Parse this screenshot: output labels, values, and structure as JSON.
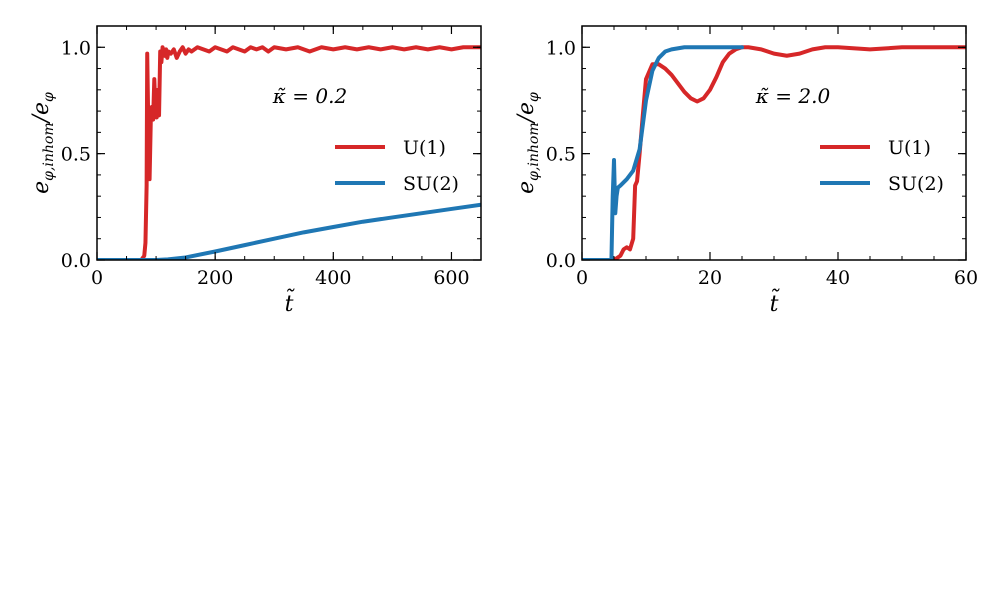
{
  "chart_data": [
    {
      "type": "line",
      "annotation": "κ̃ = 0.2",
      "xlabel": "t̃",
      "ylabel": "e_φ,inhom / e_φ",
      "xlim": [
        0,
        650
      ],
      "ylim": [
        0,
        1.1
      ],
      "xticks": [
        0,
        200,
        400,
        600
      ],
      "xtick_labels": [
        "0",
        "200",
        "400",
        "600"
      ],
      "yticks": [
        0.0,
        0.5,
        1.0
      ],
      "ytick_labels": [
        "0.0",
        "0.5",
        "1.0"
      ],
      "legend_position": "center-right",
      "series": [
        {
          "name": "U(1)",
          "color": "#d62728",
          "x": [
            0,
            75,
            80,
            82,
            84,
            85,
            87,
            89,
            91,
            93,
            95,
            97,
            99,
            101,
            103,
            105,
            107,
            109,
            111,
            113,
            115,
            117,
            119,
            121,
            125,
            130,
            135,
            140,
            145,
            150,
            155,
            160,
            170,
            180,
            190,
            200,
            210,
            220,
            230,
            240,
            250,
            260,
            270,
            280,
            290,
            300,
            320,
            340,
            360,
            380,
            400,
            420,
            440,
            460,
            480,
            500,
            520,
            540,
            560,
            580,
            600,
            620,
            650
          ],
          "y": [
            0,
            0,
            0.02,
            0.08,
            0.35,
            0.97,
            0.6,
            0.38,
            0.65,
            0.72,
            0.66,
            0.85,
            0.7,
            0.67,
            0.8,
            0.68,
            0.98,
            0.93,
            1.0,
            0.98,
            0.96,
            0.99,
            0.95,
            0.98,
            0.97,
            0.99,
            0.95,
            0.98,
            1.0,
            0.97,
            0.99,
            0.98,
            1.0,
            0.99,
            0.98,
            1.0,
            0.99,
            0.98,
            1.0,
            0.99,
            0.98,
            1.0,
            0.99,
            1.0,
            0.98,
            1.0,
            0.99,
            1.0,
            0.98,
            1.0,
            0.99,
            1.0,
            0.99,
            1.0,
            0.99,
            1.0,
            0.99,
            1.0,
            0.99,
            1.0,
            0.99,
            1.0,
            1.0
          ]
        },
        {
          "name": "SU(2)",
          "color": "#1f77b4",
          "x": [
            0,
            100,
            120,
            150,
            200,
            250,
            300,
            350,
            400,
            450,
            500,
            550,
            600,
            650
          ],
          "y": [
            0,
            0,
            0.003,
            0.012,
            0.04,
            0.07,
            0.1,
            0.13,
            0.155,
            0.18,
            0.2,
            0.22,
            0.24,
            0.26
          ]
        }
      ]
    },
    {
      "type": "line",
      "annotation": "κ̃ = 2.0",
      "xlabel": "t̃",
      "ylabel": "e_φ,inhom / e_φ",
      "xlim": [
        0,
        60
      ],
      "ylim": [
        0,
        1.1
      ],
      "xticks": [
        0,
        20,
        40,
        60
      ],
      "xtick_labels": [
        "0",
        "20",
        "40",
        "60"
      ],
      "yticks": [
        0.0,
        0.5,
        1.0
      ],
      "ytick_labels": [
        "0.0",
        "0.5",
        "1.0"
      ],
      "legend_position": "center-right",
      "series": [
        {
          "name": "U(1)",
          "color": "#d62728",
          "x": [
            0,
            5,
            6,
            6.5,
            7,
            7.5,
            8,
            8.3,
            8.6,
            9,
            9.5,
            10,
            11,
            12,
            13,
            14,
            15,
            16,
            17,
            18,
            19,
            20,
            21,
            22,
            23,
            24,
            25,
            26,
            28,
            30,
            32,
            34,
            36,
            38,
            40,
            45,
            50,
            55,
            60
          ],
          "y": [
            0,
            0,
            0.02,
            0.05,
            0.06,
            0.05,
            0.1,
            0.35,
            0.37,
            0.5,
            0.68,
            0.85,
            0.92,
            0.92,
            0.9,
            0.87,
            0.83,
            0.79,
            0.76,
            0.745,
            0.76,
            0.8,
            0.86,
            0.93,
            0.97,
            0.99,
            1.0,
            1.0,
            0.99,
            0.97,
            0.96,
            0.97,
            0.99,
            1.0,
            1.0,
            0.99,
            1.0,
            1.0,
            1.0
          ]
        },
        {
          "name": "SU(2)",
          "color": "#1f77b4",
          "x": [
            0,
            4.6,
            4.8,
            5.0,
            5.2,
            5.4,
            5.6,
            6,
            7,
            8,
            9,
            10,
            11,
            12,
            13,
            14,
            16,
            18,
            20,
            22,
            25
          ],
          "y": [
            0,
            0,
            0.3,
            0.47,
            0.22,
            0.3,
            0.34,
            0.35,
            0.38,
            0.42,
            0.52,
            0.75,
            0.89,
            0.95,
            0.98,
            0.99,
            1.0,
            1.0,
            1.0,
            1.0,
            1.0
          ]
        }
      ]
    }
  ]
}
